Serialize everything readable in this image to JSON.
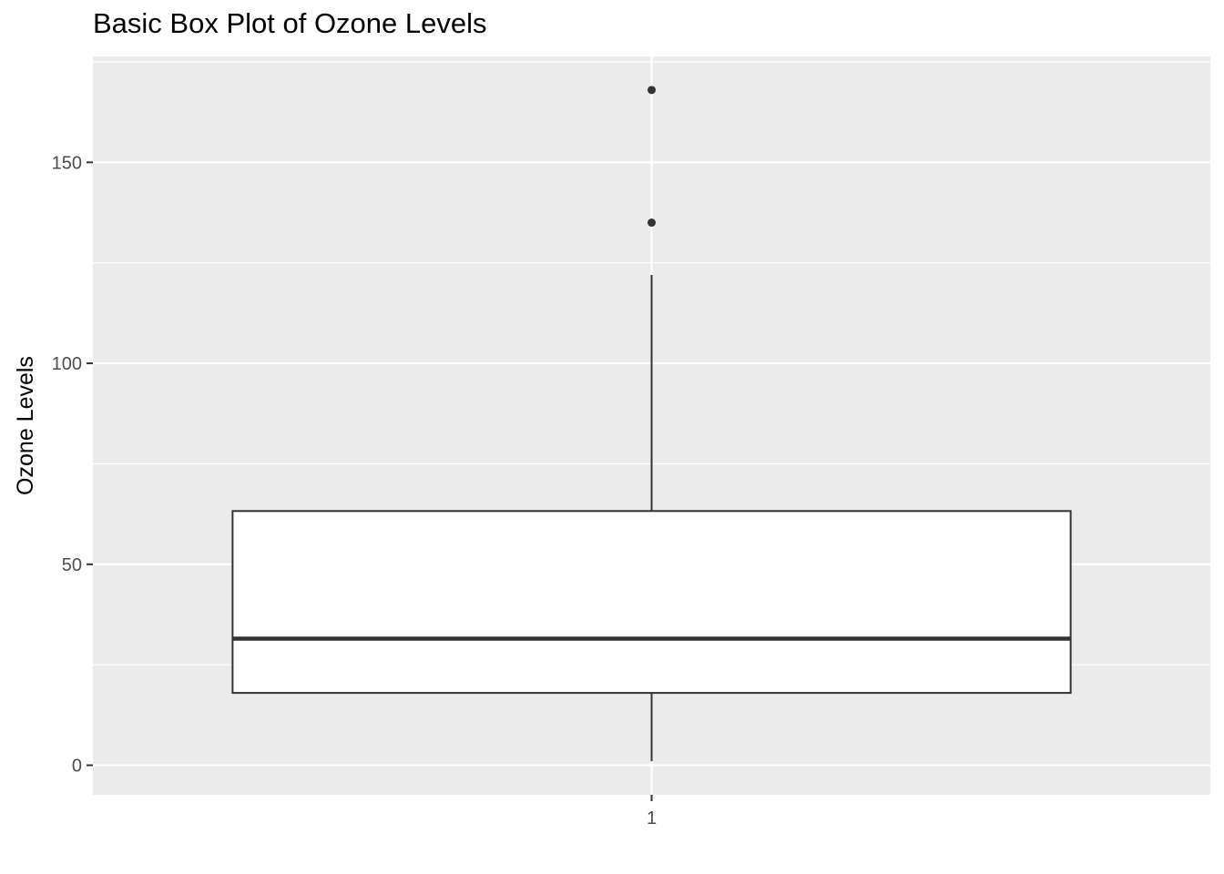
{
  "chart_data": {
    "type": "box",
    "title": "Basic Box Plot of Ozone Levels",
    "xlabel": "",
    "ylabel": "Ozone Levels",
    "categories": [
      "1"
    ],
    "boxes": [
      {
        "category": "1",
        "whisker_low": 1,
        "q1": 18,
        "median": 31.5,
        "q3": 63.25,
        "whisker_high": 122,
        "outliers": [
          135,
          168
        ]
      }
    ],
    "y_ticks": [
      0,
      50,
      100,
      150
    ],
    "y_tick_labels": [
      "0",
      "50",
      "100",
      "150"
    ],
    "x_tick_labels": [
      "1"
    ],
    "ylim": [
      -7.35,
      176.35
    ],
    "grid": true,
    "legend": "none",
    "colors": {
      "panel_background": "#EBEBEB",
      "grid_major": "#FFFFFF",
      "grid_minor": "#F5F5F5",
      "box_fill": "#FFFFFF",
      "box_stroke": "#333333",
      "tick_mark": "#333333"
    }
  }
}
